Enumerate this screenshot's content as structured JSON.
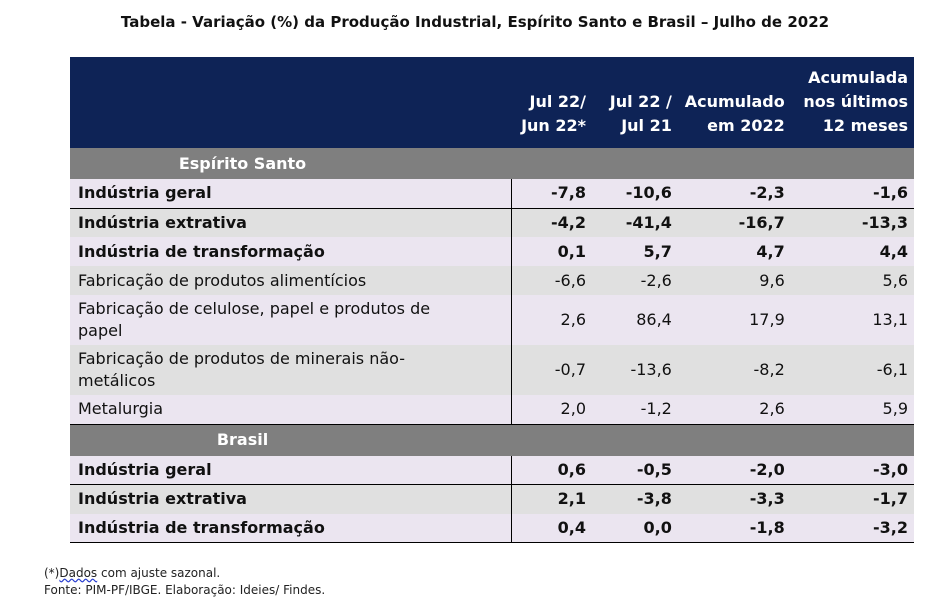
{
  "title": "Tabela - Variação (%) da Produção Industrial, Espírito Santo e Brasil – Julho de 2022",
  "columns": [
    [
      "Jul 22/",
      "Jun 22*"
    ],
    [
      "Jul 22 /",
      "Jul 21"
    ],
    [
      "Acumulado",
      "em 2022"
    ],
    [
      "Acumulada",
      "nos últimos",
      "12 meses"
    ]
  ],
  "sections": [
    {
      "name": "Espírito Santo",
      "rows": [
        {
          "label": "Indústria geral",
          "bold": true,
          "values": [
            "-7,8",
            "-10,6",
            "-2,3",
            "-1,6"
          ]
        },
        {
          "label": "Indústria extrativa",
          "bold": true,
          "values": [
            "-4,2",
            "-41,4",
            "-16,7",
            "-13,3"
          ]
        },
        {
          "label": "Indústria de transformação",
          "bold": true,
          "values": [
            "0,1",
            "5,7",
            "4,7",
            "4,4"
          ]
        },
        {
          "label": "Fabricação de produtos alimentícios",
          "bold": false,
          "values": [
            "-6,6",
            "-2,6",
            "9,6",
            "5,6"
          ]
        },
        {
          "label": "Fabricação de celulose, papel e produtos de papel",
          "bold": false,
          "values": [
            "2,6",
            "86,4",
            "17,9",
            "13,1"
          ]
        },
        {
          "label": "Fabricação de produtos de minerais não-metálicos",
          "bold": false,
          "values": [
            "-0,7",
            "-13,6",
            "-8,2",
            "-6,1"
          ]
        },
        {
          "label": "Metalurgia",
          "bold": false,
          "values": [
            "2,0",
            "-1,2",
            "2,6",
            "5,9"
          ]
        }
      ]
    },
    {
      "name": "Brasil",
      "rows": [
        {
          "label": "Indústria geral",
          "bold": true,
          "values": [
            "0,6",
            "-0,5",
            "-2,0",
            "-3,0"
          ]
        },
        {
          "label": "Indústria extrativa",
          "bold": true,
          "values": [
            "2,1",
            "-3,8",
            "-3,3",
            "-1,7"
          ]
        },
        {
          "label": "Indústria de transformação",
          "bold": true,
          "values": [
            "0,4",
            "0,0",
            "-1,8",
            "-3,2"
          ]
        }
      ]
    }
  ],
  "notes": {
    "asterisk": "(*)",
    "asterisk_word": "Dados",
    "asterisk_rest": " com ajuste sazonal.",
    "source": "Fonte: PIM-PF/IBGE. Elaboração: Ideies/ Findes."
  }
}
